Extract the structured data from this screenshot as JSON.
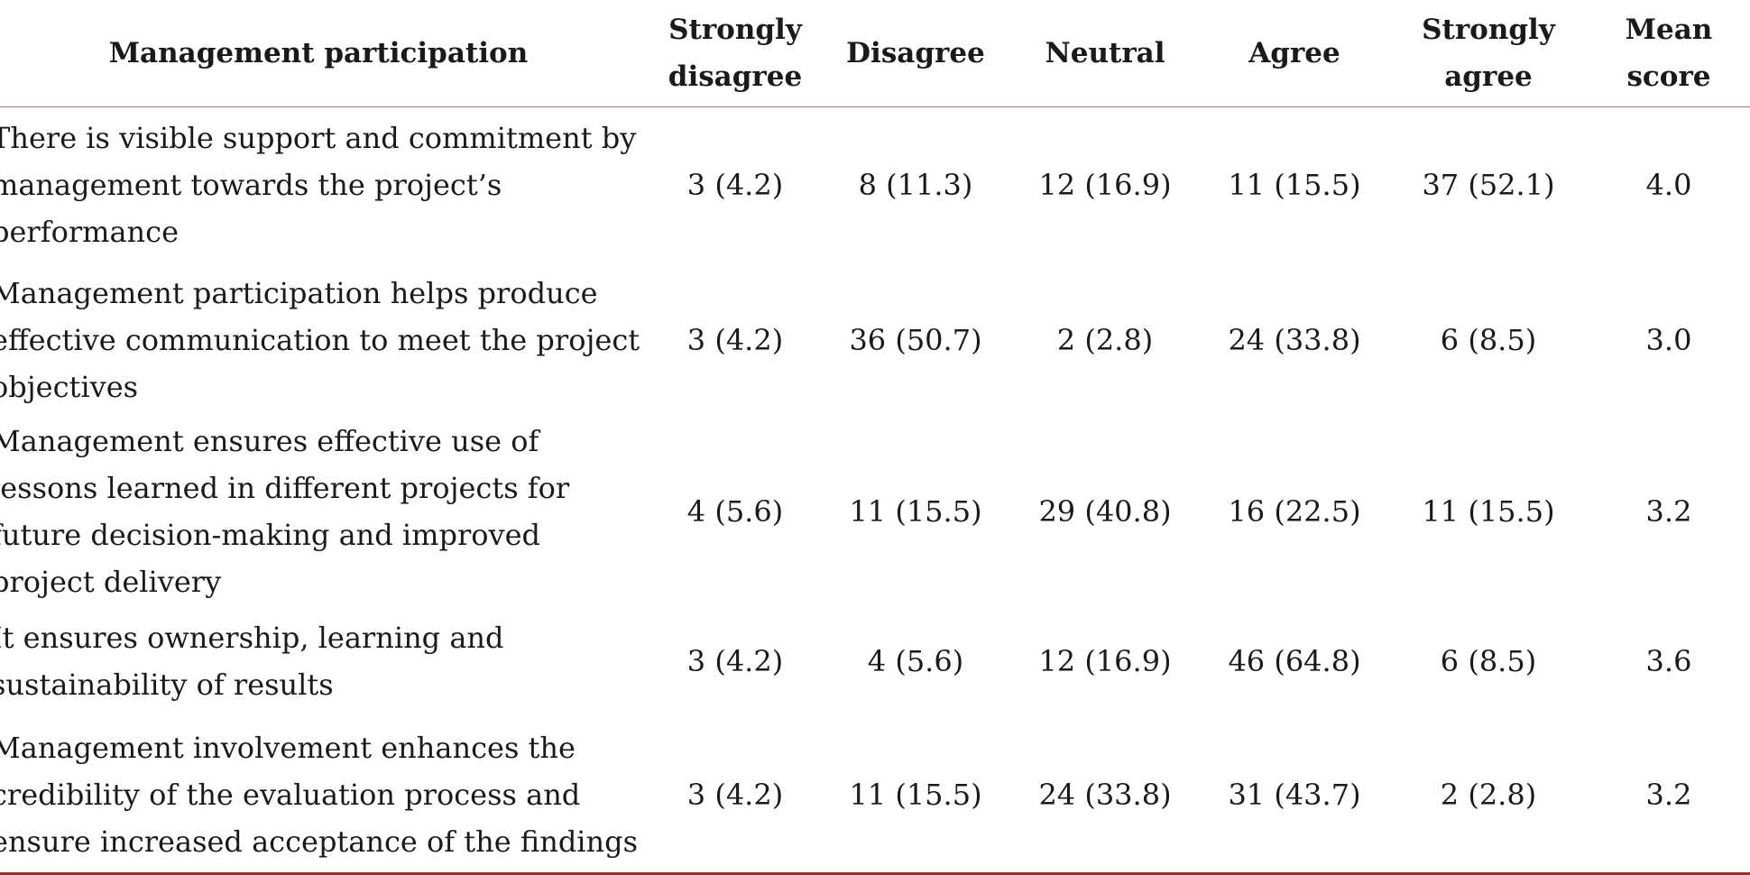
{
  "table": {
    "headers": {
      "item": "Management participation",
      "strongly_disagree": "Strongly disagree",
      "disagree": "Disagree",
      "neutral": "Neutral",
      "agree": "Agree",
      "strongly_agree": "Strongly agree",
      "mean": "Mean score"
    },
    "rows": [
      {
        "item": "There is visible support and commitment by management towards the project’s performance",
        "sd": "3 (4.2)",
        "d": "8 (11.3)",
        "n": "12 (16.9)",
        "a": "11 (15.5)",
        "sa": "37 (52.1)",
        "mean": "4.0"
      },
      {
        "item": "Management participation helps produce effective communication to meet the project objectives",
        "sd": "3 (4.2)",
        "d": "36 (50.7)",
        "n": "2 (2.8)",
        "a": "24 (33.8)",
        "sa": "6 (8.5)",
        "mean": "3.0"
      },
      {
        "item": "Management ensures effective use of lessons learned in different projects for future decision-making and improved project delivery",
        "sd": "4 (5.6)",
        "d": "11 (15.5)",
        "n": "29 (40.8)",
        "a": "16 (22.5)",
        "sa": "11 (15.5)",
        "mean": "3.2"
      },
      {
        "item": "It ensures ownership, learning and sustainability of results",
        "sd": "3 (4.2)",
        "d": "4 (5.6)",
        "n": "12 (16.9)",
        "a": "46 (64.8)",
        "sa": "6 (8.5)",
        "mean": "3.6"
      },
      {
        "item": "Management involvement enhances the credibility of the evaluation process and ensure increased acceptance of the findings",
        "sd": "3 (4.2)",
        "d": "11 (15.5)",
        "n": "24 (33.8)",
        "a": "31 (43.7)",
        "sa": "2 (2.8)",
        "mean": "3.2"
      }
    ]
  },
  "colors": {
    "header_rule": "#b36b6b",
    "bottom_rule": "#a52a2a",
    "text": "#1a1a1a"
  }
}
